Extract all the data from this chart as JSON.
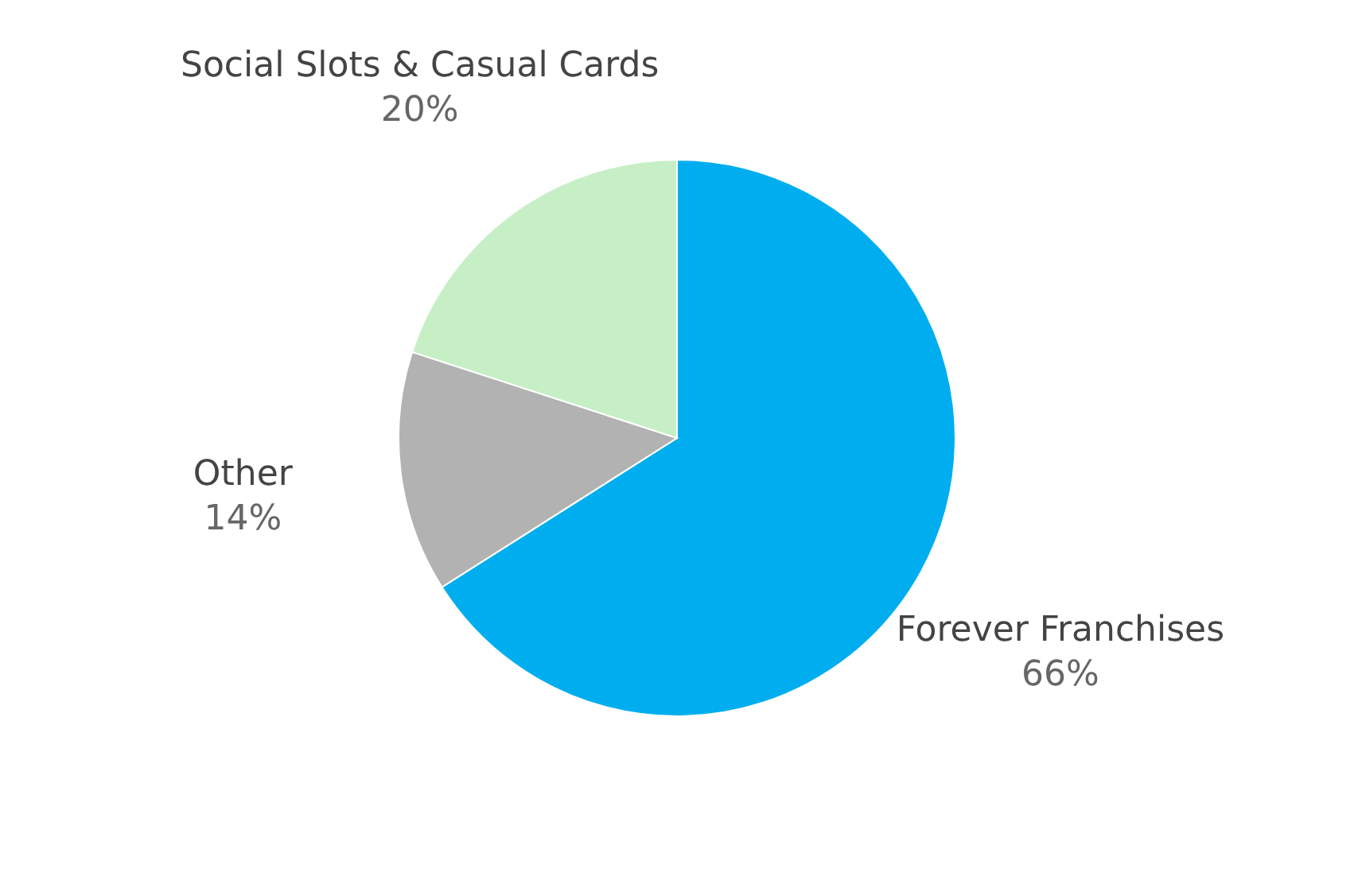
{
  "chart_data": {
    "type": "pie",
    "categories": [
      "Forever Franchises",
      "Other",
      "Social Slots & Casual Cards"
    ],
    "values": [
      66,
      14,
      20
    ],
    "value_labels": [
      "66%",
      "14%",
      "20%"
    ],
    "colors": [
      "#00aeef",
      "#b2b2b2",
      "#c6efc6"
    ],
    "legend": false
  }
}
